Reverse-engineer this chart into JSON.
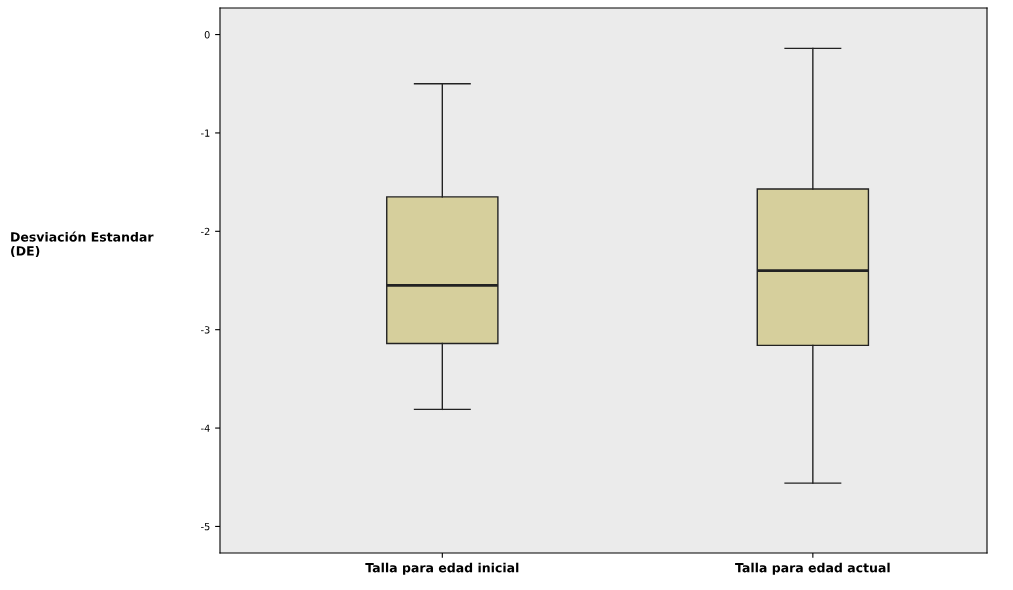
{
  "chart_data": {
    "type": "box",
    "ylabel": "Desviación Estandar\n(DE)",
    "categories": [
      "Talla para edad inicial",
      "Talla para edad actual"
    ],
    "boxes": [
      {
        "low": -3.81,
        "q1": -3.14,
        "median": -2.55,
        "q3": -1.65,
        "high": -0.5
      },
      {
        "low": -4.56,
        "q1": -3.16,
        "median": -2.4,
        "q3": -1.57,
        "high": -0.14
      }
    ],
    "color": "#d6cf9c",
    "ylim": [
      -5.27,
      0.27
    ],
    "yticks": [
      0,
      -1,
      -2,
      -3,
      -4,
      -5
    ],
    "grid": false,
    "legend": false
  }
}
